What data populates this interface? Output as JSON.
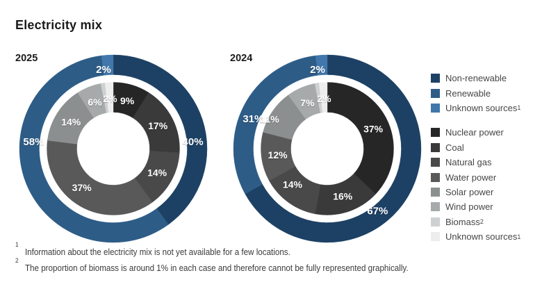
{
  "title": "Electricity mix",
  "palette": {
    "non-renewable": "#1d4164",
    "renewable": "#2d5c87",
    "unknown-blue": "#4177ab",
    "nuclear": "#262626",
    "coal": "#3a3a3a",
    "natural-gas": "#494949",
    "water": "#595959",
    "solar": "#8c8f8f",
    "wind": "#a7aaaa",
    "biomass": "#ced1d1",
    "unknown-gray": "#ededee"
  },
  "chart_data": [
    {
      "type": "pie",
      "subtype": "nested-donut",
      "title": "2025",
      "unit": "%",
      "rings": [
        {
          "id": "categories",
          "position": "outer",
          "slices": [
            {
              "label": "Non-renewable",
              "value": 40,
              "color": "non-renewable",
              "label_angle": 85
            },
            {
              "label": "Renewable",
              "value": 58,
              "color": "renewable",
              "label_angle": 275
            },
            {
              "label": "Unknown sources",
              "value": 2,
              "color": "unknown-blue",
              "label_angle": 353
            }
          ]
        },
        {
          "id": "sources",
          "position": "inner",
          "slices": [
            {
              "label": "Nuclear power",
              "value": 9,
              "color": "nuclear"
            },
            {
              "label": "Coal",
              "value": 17,
              "color": "coal"
            },
            {
              "label": "Natural gas",
              "value": 14,
              "color": "natural-gas"
            },
            {
              "label": "Water power",
              "value": 37,
              "color": "water",
              "label_angle": 219
            },
            {
              "label": "Solar power",
              "value": 14,
              "color": "solar"
            },
            {
              "label": "Wind power",
              "value": 6,
              "color": "wind"
            },
            {
              "label": "Biomass",
              "value": 1,
              "color": "biomass",
              "show_label": false
            },
            {
              "label": "Unknown sources",
              "value": 2,
              "color": "unknown-gray"
            }
          ]
        }
      ]
    },
    {
      "type": "pie",
      "subtype": "nested-donut",
      "title": "2024",
      "unit": "%",
      "rings": [
        {
          "id": "categories",
          "position": "outer",
          "slices": [
            {
              "label": "Non-renewable",
              "value": 67,
              "color": "non-renewable",
              "label_angle": 141
            },
            {
              "label": "Renewable",
              "value": 31,
              "color": "renewable",
              "label_angle": 292
            },
            {
              "label": "Unknown sources",
              "value": 2,
              "color": "unknown-blue",
              "label_angle": 353
            }
          ]
        },
        {
          "id": "sources",
          "position": "inner",
          "slices": [
            {
              "label": "Nuclear power",
              "value": 37,
              "color": "nuclear"
            },
            {
              "label": "Coal",
              "value": 16,
              "color": "coal"
            },
            {
              "label": "Natural gas",
              "value": 14,
              "color": "natural-gas",
              "label_angle": 224
            },
            {
              "label": "Water power",
              "value": 12,
              "color": "water"
            },
            {
              "label": "Solar power",
              "value": 11,
              "color": "solar",
              "label_angle": 297,
              "label_radius": 93
            },
            {
              "label": "Wind power",
              "value": 7,
              "color": "wind"
            },
            {
              "label": "Biomass",
              "value": 1,
              "color": "biomass",
              "show_label": false
            },
            {
              "label": "Unknown sources",
              "value": 2,
              "color": "unknown-gray"
            }
          ]
        }
      ]
    }
  ],
  "legend": {
    "groups": [
      {
        "id": "categories",
        "items": [
          {
            "label": "Non-renewable",
            "color": "non-renewable"
          },
          {
            "label": "Renewable",
            "color": "renewable"
          },
          {
            "label": "Unknown sources",
            "sup": "1",
            "color": "unknown-blue"
          }
        ]
      },
      {
        "id": "sources",
        "items": [
          {
            "label": "Nuclear power",
            "color": "nuclear"
          },
          {
            "label": "Coal",
            "color": "coal"
          },
          {
            "label": "Natural gas",
            "color": "natural-gas"
          },
          {
            "label": "Water power",
            "color": "water"
          },
          {
            "label": "Solar power",
            "color": "solar"
          },
          {
            "label": "Wind power",
            "color": "wind"
          },
          {
            "label": "Biomass",
            "sup": "2",
            "color": "biomass"
          },
          {
            "label": "Unknown sources",
            "sup": "1",
            "color": "unknown-gray"
          }
        ]
      }
    ]
  },
  "footnotes": [
    {
      "marker": "1",
      "text": "Information about the electricity mix is not yet available for a few locations."
    },
    {
      "marker": "2",
      "text": "The proportion of biomass is around 1% in each case and therefore cannot be fully represented graphically."
    }
  ]
}
